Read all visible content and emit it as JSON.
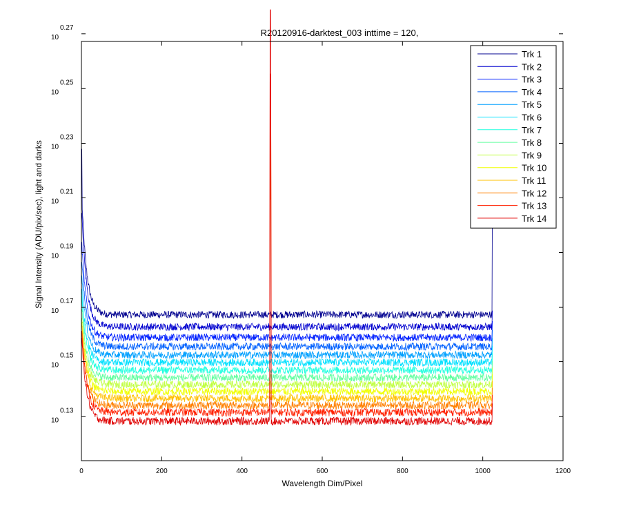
{
  "chart_data": {
    "type": "line",
    "title": "R20120916-darktest_003 inttime = 120,",
    "xlabel": "Wavelength Dim/Pixel",
    "ylabel": "Signal Intensity (ADU/pix/sec), light and darks",
    "xlim": [
      0,
      1200
    ],
    "ylim": [
      1.3,
      1.85
    ],
    "yscale": "log",
    "grid": false,
    "legend_position": "top-right",
    "x_ticks": [
      "0",
      "200",
      "400",
      "600",
      "800",
      "1000",
      "1200"
    ],
    "x_tick_values": [
      0,
      200,
      400,
      600,
      800,
      1000,
      1200
    ],
    "y_ticks": [
      {
        "base": "10",
        "exp": "0.13"
      },
      {
        "base": "10",
        "exp": "0.15"
      },
      {
        "base": "10",
        "exp": "0.17"
      },
      {
        "base": "10",
        "exp": "0.19"
      },
      {
        "base": "10",
        "exp": "0.21"
      },
      {
        "base": "10",
        "exp": "0.23"
      },
      {
        "base": "10",
        "exp": "0.25"
      },
      {
        "base": "10",
        "exp": "0.27"
      }
    ],
    "y_tick_values": [
      1.349,
      1.413,
      1.479,
      1.549,
      1.622,
      1.698,
      1.778,
      1.862
    ],
    "pixel_range": [
      1,
      1024
    ],
    "spike": {
      "x": [
        470,
        472
      ],
      "peak_values": [
        1.9,
        1.8,
        1.62
      ]
    },
    "series": [
      {
        "name": "Trk 1",
        "color": "#00008f",
        "plateau": 1.47,
        "start": 1.62
      },
      {
        "name": "Trk 2",
        "color": "#0000cf",
        "plateau": 1.455,
        "start": 1.6
      },
      {
        "name": "Trk 3",
        "color": "#0020ff",
        "plateau": 1.442,
        "start": 1.56
      },
      {
        "name": "Trk 4",
        "color": "#0060ff",
        "plateau": 1.431,
        "start": 1.54
      },
      {
        "name": "Trk 5",
        "color": "#00a0ff",
        "plateau": 1.421,
        "start": 1.52
      },
      {
        "name": "Trk 6",
        "color": "#00e0ff",
        "plateau": 1.412,
        "start": 1.5
      },
      {
        "name": "Trk 7",
        "color": "#20ffdf",
        "plateau": 1.403,
        "start": 1.49
      },
      {
        "name": "Trk 8",
        "color": "#60ff9f",
        "plateau": 1.394,
        "start": 1.48
      },
      {
        "name": "Trk 9",
        "color": "#c0ff40",
        "plateau": 1.386,
        "start": 1.47
      },
      {
        "name": "Trk 10",
        "color": "#f0ff00",
        "plateau": 1.378,
        "start": 1.46
      },
      {
        "name": "Trk 11",
        "color": "#ffc000",
        "plateau": 1.37,
        "start": 1.46
      },
      {
        "name": "Trk 12",
        "color": "#ff8000",
        "plateau": 1.362,
        "start": 1.45
      },
      {
        "name": "Trk 13",
        "color": "#ff2000",
        "plateau": 1.354,
        "start": 1.45
      },
      {
        "name": "Trk 14",
        "color": "#e00000",
        "plateau": 1.344,
        "start": 1.44
      }
    ]
  }
}
